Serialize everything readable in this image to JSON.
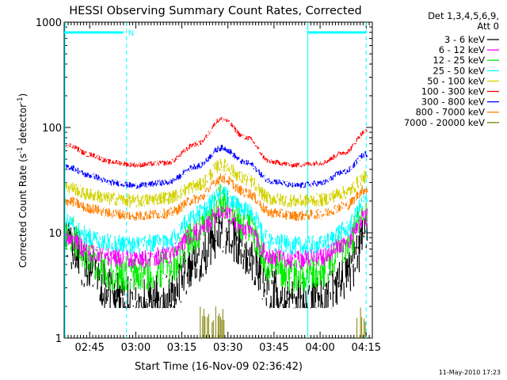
{
  "chart_data": {
    "type": "line",
    "title": "HESSI Observing Summary Count Rates, Corrected",
    "xlabel": "Start Time (16-Nov-09 02:36:42)",
    "ylabel_main": "Corrected Count Rate (s",
    "ylabel_sup1": "-1",
    "ylabel_mid": " detector",
    "ylabel_sup2": "-1",
    "ylabel_end": ")",
    "yscale": "log",
    "ylim": [
      1,
      1000
    ],
    "xlim": [
      "02:36:42",
      "04:17:00"
    ],
    "yticks": [
      {
        "value": 1,
        "label": "1"
      },
      {
        "value": 10,
        "label": "10"
      },
      {
        "value": 100,
        "label": "100"
      },
      {
        "value": 1000,
        "label": "1000"
      }
    ],
    "xticks": [
      {
        "value": "02:45",
        "label": "02:45"
      },
      {
        "value": "03:00",
        "label": "03:00"
      },
      {
        "value": "03:15",
        "label": "03:15"
      },
      {
        "value": "03:30",
        "label": "03:30"
      },
      {
        "value": "03:45",
        "label": "03:45"
      },
      {
        "value": "04:00",
        "label": "04:00"
      },
      {
        "value": "04:15",
        "label": "04:15"
      }
    ],
    "legend_header": [
      "Det 1,3,4,5,6,9,",
      "Att 0"
    ],
    "legend_placement": "right",
    "series": [
      {
        "name": "3 - 6 keV",
        "color": "#000000",
        "x": [
          "02:38",
          "02:45",
          "02:52",
          "03:00",
          "03:10",
          "03:20",
          "03:28",
          "03:36",
          "03:44",
          "03:52",
          "04:00",
          "04:08",
          "04:15"
        ],
        "y": [
          7.5,
          4.5,
          2.8,
          2.2,
          2.4,
          5.5,
          10.5,
          6.5,
          2.8,
          2.2,
          2.4,
          3.8,
          8.5
        ]
      },
      {
        "name": "6 - 12 keV",
        "color": "#ff00ff",
        "x": [
          "02:38",
          "02:45",
          "02:52",
          "03:00",
          "03:10",
          "03:20",
          "03:28",
          "03:36",
          "03:44",
          "03:52",
          "04:00",
          "04:08",
          "04:15"
        ],
        "y": [
          9,
          6.5,
          5.8,
          5.5,
          6,
          10,
          16,
          10.5,
          6,
          5.5,
          5.8,
          8,
          14
        ]
      },
      {
        "name": "12 - 25 keV",
        "color": "#00ee00",
        "x": [
          "02:38",
          "02:45",
          "02:52",
          "03:00",
          "03:10",
          "03:20",
          "03:28",
          "03:36",
          "03:44",
          "03:52",
          "04:00",
          "04:08",
          "04:15"
        ],
        "y": [
          10,
          5.5,
          4.2,
          4,
          4.5,
          10,
          20,
          12,
          4.8,
          4,
          4.2,
          7,
          16
        ]
      },
      {
        "name": "25 - 50 keV",
        "color": "#00ffff",
        "x": [
          "02:38",
          "02:45",
          "02:52",
          "03:00",
          "03:10",
          "03:20",
          "03:28",
          "03:36",
          "03:44",
          "03:52",
          "04:00",
          "04:08",
          "04:15"
        ],
        "y": [
          13,
          9,
          8,
          7.6,
          8.3,
          15,
          23,
          16,
          8.3,
          7.5,
          7.7,
          10.5,
          20
        ]
      },
      {
        "name": "50 - 100 keV",
        "color": "#d2d200",
        "x": [
          "02:38",
          "02:45",
          "02:52",
          "03:00",
          "03:10",
          "03:20",
          "03:28",
          "03:36",
          "03:44",
          "03:52",
          "04:00",
          "04:08",
          "04:15"
        ],
        "y": [
          27,
          23,
          21,
          20,
          21.5,
          28,
          44,
          32,
          21,
          20,
          20.5,
          24,
          34
        ]
      },
      {
        "name": "100 - 300 keV",
        "color": "#ff0000",
        "x": [
          "02:38",
          "02:45",
          "02:52",
          "03:00",
          "03:10",
          "03:20",
          "03:28",
          "03:36",
          "03:44",
          "03:52",
          "04:00",
          "04:08",
          "04:15"
        ],
        "y": [
          68,
          55,
          47,
          44,
          46,
          70,
          120,
          80,
          47,
          44,
          46,
          58,
          92
        ]
      },
      {
        "name": "300 - 800 keV",
        "color": "#0000ff",
        "x": [
          "02:38",
          "02:45",
          "02:52",
          "03:00",
          "03:10",
          "03:20",
          "03:28",
          "03:36",
          "03:44",
          "03:52",
          "04:00",
          "04:08",
          "04:15"
        ],
        "y": [
          42,
          35,
          30,
          28,
          30,
          43,
          64,
          46,
          31,
          28,
          29.5,
          38,
          56
        ]
      },
      {
        "name": "800 - 7000 keV",
        "color": "#ff7f00",
        "x": [
          "02:38",
          "02:45",
          "02:52",
          "03:00",
          "03:10",
          "03:20",
          "03:28",
          "03:36",
          "03:44",
          "03:52",
          "04:00",
          "04:08",
          "04:15"
        ],
        "y": [
          20,
          17,
          15.2,
          14.5,
          15.2,
          21,
          33,
          24,
          15.5,
          14.5,
          15,
          18,
          26
        ]
      },
      {
        "name": "7000 - 20000 keV",
        "color": "#7f7f00",
        "x": [],
        "y": []
      }
    ],
    "bursts": {
      "color": "#7f7f00",
      "x_ranges": [
        [
          "03:21",
          "03:29"
        ],
        [
          "04:12",
          "04:15"
        ]
      ]
    },
    "markers": {
      "color": "#00ffff",
      "label": "N",
      "vlines": [
        "02:57",
        "03:56",
        "04:15"
      ]
    },
    "footer_date": "11-May-2010 17:23"
  }
}
